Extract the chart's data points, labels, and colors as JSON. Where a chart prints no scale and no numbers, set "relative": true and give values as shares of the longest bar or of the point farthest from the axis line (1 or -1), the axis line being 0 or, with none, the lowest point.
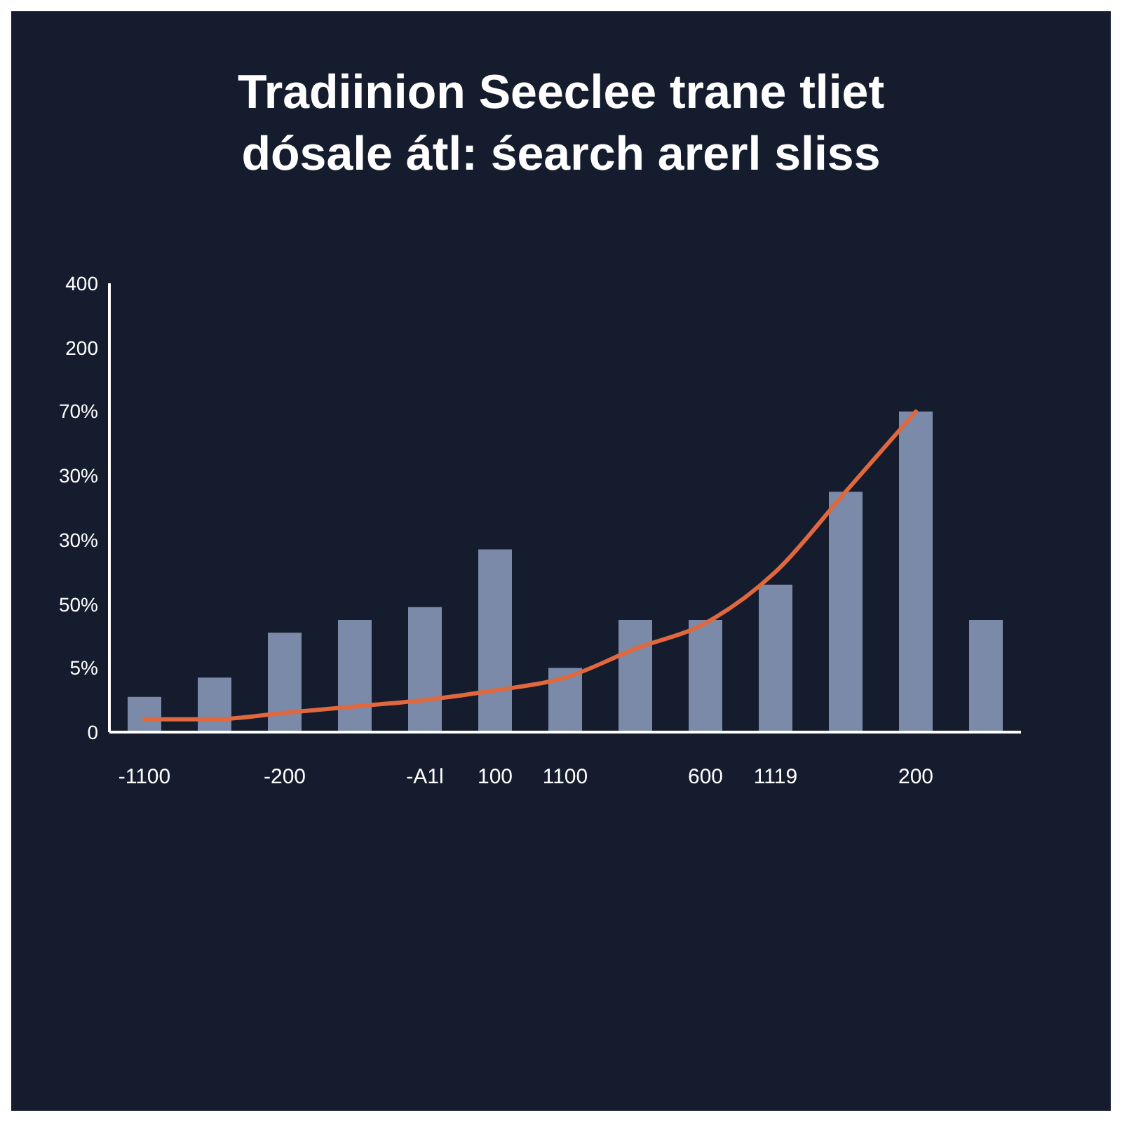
{
  "chart_data": {
    "type": "bar",
    "title": "Tradiinion Seeclee trane tliet",
    "subtitle": "dósale átl: śearch  arerl sliss",
    "categories": [
      "-1100",
      null,
      "-200",
      null,
      "-A1l",
      "100",
      "1100",
      null,
      "600",
      "1119",
      null,
      "200",
      null
    ],
    "relative": true,
    "series": [
      {
        "color": "#7a8aa8",
        "values": [
          0.11,
          0.17,
          0.31,
          0.35,
          0.39,
          0.57,
          0.2,
          0.35,
          0.35,
          0.46,
          0.75,
          1.0,
          0.35
        ]
      },
      {
        "type": "line",
        "color": "#e0683f",
        "values": [
          0.04,
          0.04,
          0.06,
          0.08,
          0.1,
          0.13,
          0.17,
          0.26,
          0.34,
          0.5,
          0.75,
          1.0,
          null
        ]
      }
    ],
    "annotations": [
      "400",
      "200",
      "70%",
      "30%",
      "30%",
      "50%",
      "5%",
      "0"
    ]
  }
}
